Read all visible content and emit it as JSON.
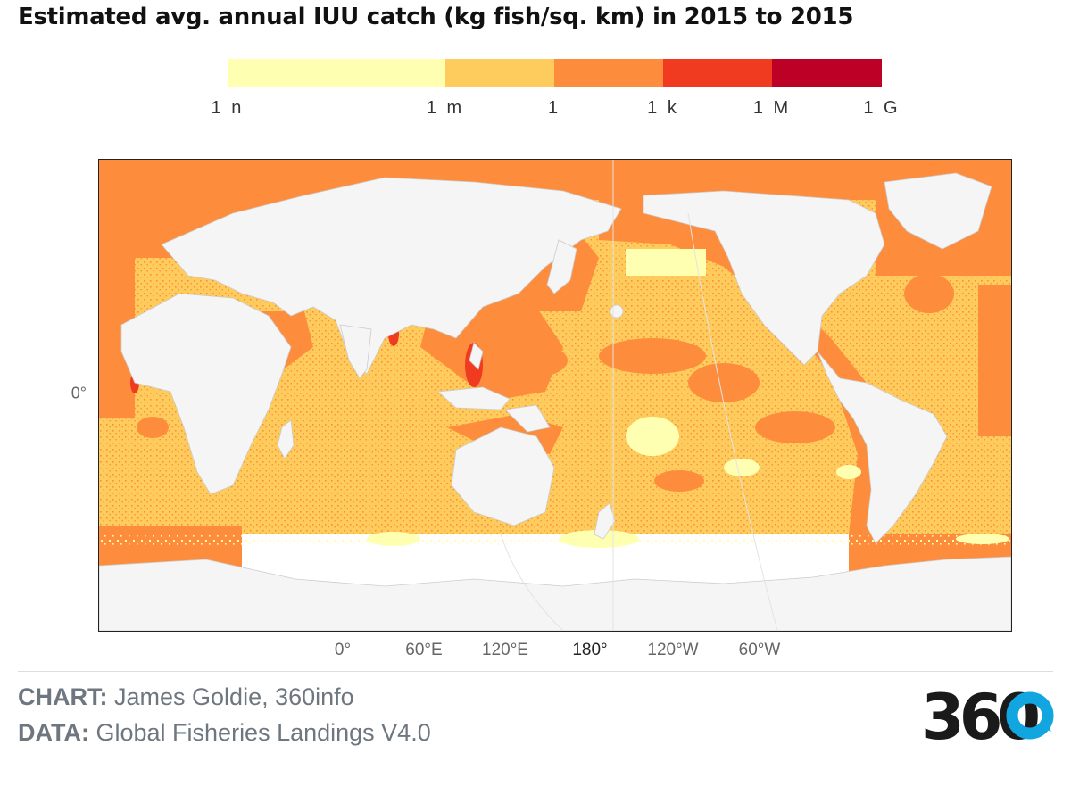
{
  "title": "Estimated avg. annual IUU catch (kg fish/sq. km) in 2015 to 2015",
  "legend": {
    "bins": [
      {
        "from": "1 n",
        "to": "1 m",
        "color": "#ffffb2"
      },
      {
        "from": "1 m",
        "to": "1",
        "color": "#fecc5c"
      },
      {
        "from": "1",
        "to": "1 k",
        "color": "#fd8d3c"
      },
      {
        "from": "1 k",
        "to": "1 M",
        "color": "#f03b20"
      },
      {
        "from": "1 M",
        "to": "1 G",
        "color": "#bd0026"
      }
    ],
    "ticks": [
      "1 n",
      "1 m",
      "1",
      "1 k",
      "1 M",
      "1 G"
    ]
  },
  "map": {
    "projection": "equirectangular, centred on 150°E",
    "latitude_labels": [
      "0°"
    ],
    "longitude_labels": [
      "0°",
      "60°E",
      "120°E",
      "180°",
      "120°W",
      "60°W"
    ],
    "land_color": "#f5f5f5",
    "land_border_color": "#cccccc"
  },
  "credits": {
    "chart_key": "CHART:",
    "chart_value": "James Goldie, 360info",
    "data_key": "DATA:",
    "data_value": "Global Fisheries Landings V4.0"
  },
  "logo": {
    "text": "360",
    "text_color": "#1a1a1a",
    "accent_color": "#12a6e0"
  }
}
